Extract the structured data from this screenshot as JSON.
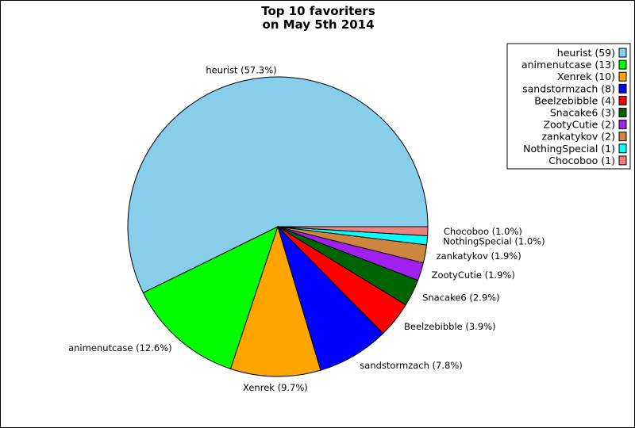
{
  "chart_data": {
    "type": "pie",
    "title_lines": [
      "Top 10 favoriters",
      "on May 5th 2014"
    ],
    "slices": [
      {
        "name": "heurist",
        "value": 59,
        "percent_label": "heurist (57.3%)",
        "legend_label": "heurist (59)",
        "color": "#87CEEB"
      },
      {
        "name": "animenutcase",
        "value": 13,
        "percent_label": "animenutcase (12.6%)",
        "legend_label": "animenutcase (13)",
        "color": "#00FF00"
      },
      {
        "name": "Xenrek",
        "value": 10,
        "percent_label": "Xenrek (9.7%)",
        "legend_label": "Xenrek (10)",
        "color": "#FFA500"
      },
      {
        "name": "sandstormzach",
        "value": 8,
        "percent_label": "sandstormzach (7.8%)",
        "legend_label": "sandstormzach (8)",
        "color": "#0000FF"
      },
      {
        "name": "Beelzebibble",
        "value": 4,
        "percent_label": "Beelzebibble (3.9%)",
        "legend_label": "Beelzebibble (4)",
        "color": "#FF0000"
      },
      {
        "name": "Snacake6",
        "value": 3,
        "percent_label": "Snacake6 (2.9%)",
        "legend_label": "Snacake6 (3)",
        "color": "#006400"
      },
      {
        "name": "ZootyCutie",
        "value": 2,
        "percent_label": "ZootyCutie (1.9%)",
        "legend_label": "ZootyCutie (2)",
        "color": "#A020F0"
      },
      {
        "name": "zankatykov",
        "value": 2,
        "percent_label": "zankatykov (1.9%)",
        "legend_label": "zankatykov (2)",
        "color": "#CD853F"
      },
      {
        "name": "NothingSpecial",
        "value": 1,
        "percent_label": "NothingSpecial (1.0%)",
        "legend_label": "NothingSpecial (1)",
        "color": "#00FFFF"
      },
      {
        "name": "Chocoboo",
        "value": 1,
        "percent_label": "Chocoboo (1.0%)",
        "legend_label": "Chocoboo (1)",
        "color": "#F08080"
      }
    ],
    "legend_position": "top-right",
    "start_direction": "east",
    "winding": "counterclockwise"
  }
}
